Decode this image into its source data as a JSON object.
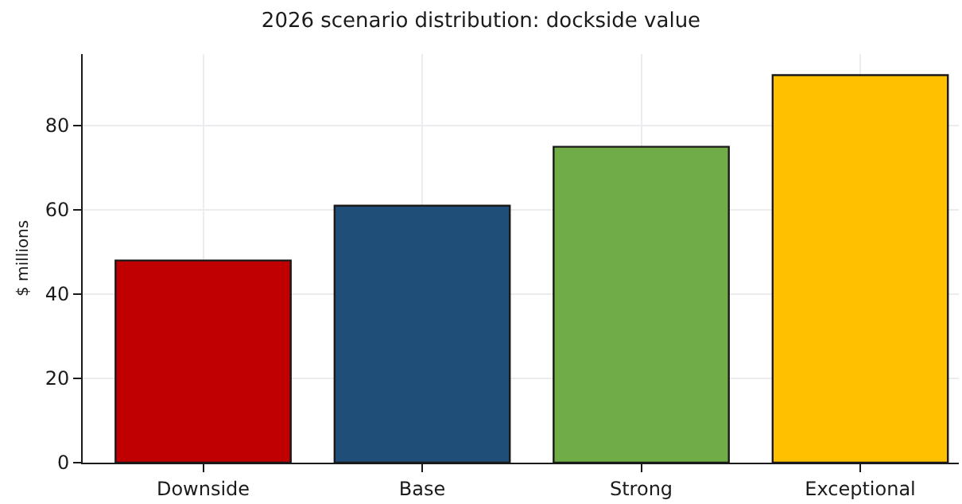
{
  "chart_data": {
    "type": "bar",
    "title": "2026 scenario distribution: dockside value",
    "ylabel": "$ millions",
    "categories": [
      "Downside",
      "Base",
      "Strong",
      "Exceptional"
    ],
    "values": [
      48,
      61,
      75,
      92
    ],
    "colors": [
      "#c00000",
      "#1f4e79",
      "#70ad47",
      "#ffc000"
    ],
    "ylim": [
      0,
      97
    ],
    "yticks": [
      0,
      20,
      40,
      60,
      80
    ],
    "grid": true
  }
}
